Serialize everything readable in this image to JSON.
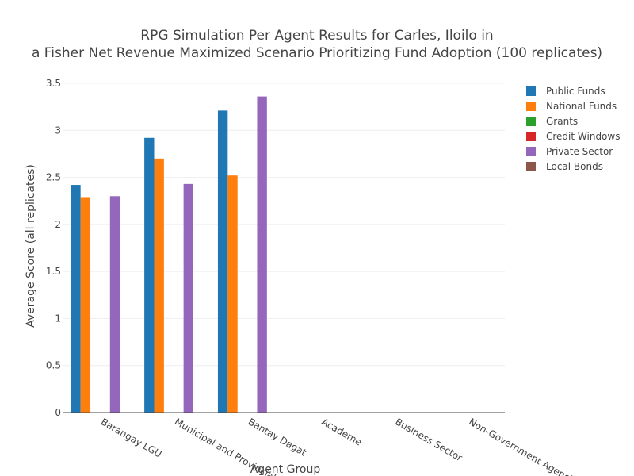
{
  "chart_data": {
    "type": "bar",
    "title": [
      "RPG Simulation Per Agent Results for Carles, Iloilo in",
      "a Fisher Net Revenue Maximized Scenario Prioritizing Fund Adoption (100 replicates)"
    ],
    "xlabel": "Agent Group",
    "ylabel": "Average Score (all replicates)",
    "categories": [
      "Barangay LGU",
      "Municipal and Provincial LGU",
      "Bantay Dagat",
      "Academe",
      "Business Sector",
      "Non-Government Agencies"
    ],
    "ylim": [
      0,
      3.5
    ],
    "yticks": [
      0,
      0.5,
      1,
      1.5,
      2,
      2.5,
      3,
      3.5
    ],
    "ytick_labels": [
      "0",
      "0.5",
      "1",
      "1.5",
      "2",
      "2.5",
      "3",
      "3.5"
    ],
    "grid": true,
    "legend_position": "right",
    "series": [
      {
        "name": "Public Funds",
        "color": "#1f77b4",
        "values": [
          2.42,
          2.92,
          3.21,
          0,
          0,
          0
        ]
      },
      {
        "name": "National Funds",
        "color": "#ff7f0e",
        "values": [
          2.29,
          2.7,
          2.52,
          0,
          0,
          0
        ]
      },
      {
        "name": "Grants",
        "color": "#2ca02c",
        "values": [
          0,
          0,
          0,
          0,
          0,
          0
        ]
      },
      {
        "name": "Credit Windows",
        "color": "#d62728",
        "values": [
          0,
          0,
          0,
          0,
          0,
          0
        ]
      },
      {
        "name": "Private Sector",
        "color": "#9467bd",
        "values": [
          2.3,
          2.43,
          3.36,
          0,
          0,
          0
        ]
      },
      {
        "name": "Local Bonds",
        "color": "#8c564b",
        "values": [
          0,
          0,
          0,
          0,
          0,
          0
        ]
      }
    ]
  }
}
